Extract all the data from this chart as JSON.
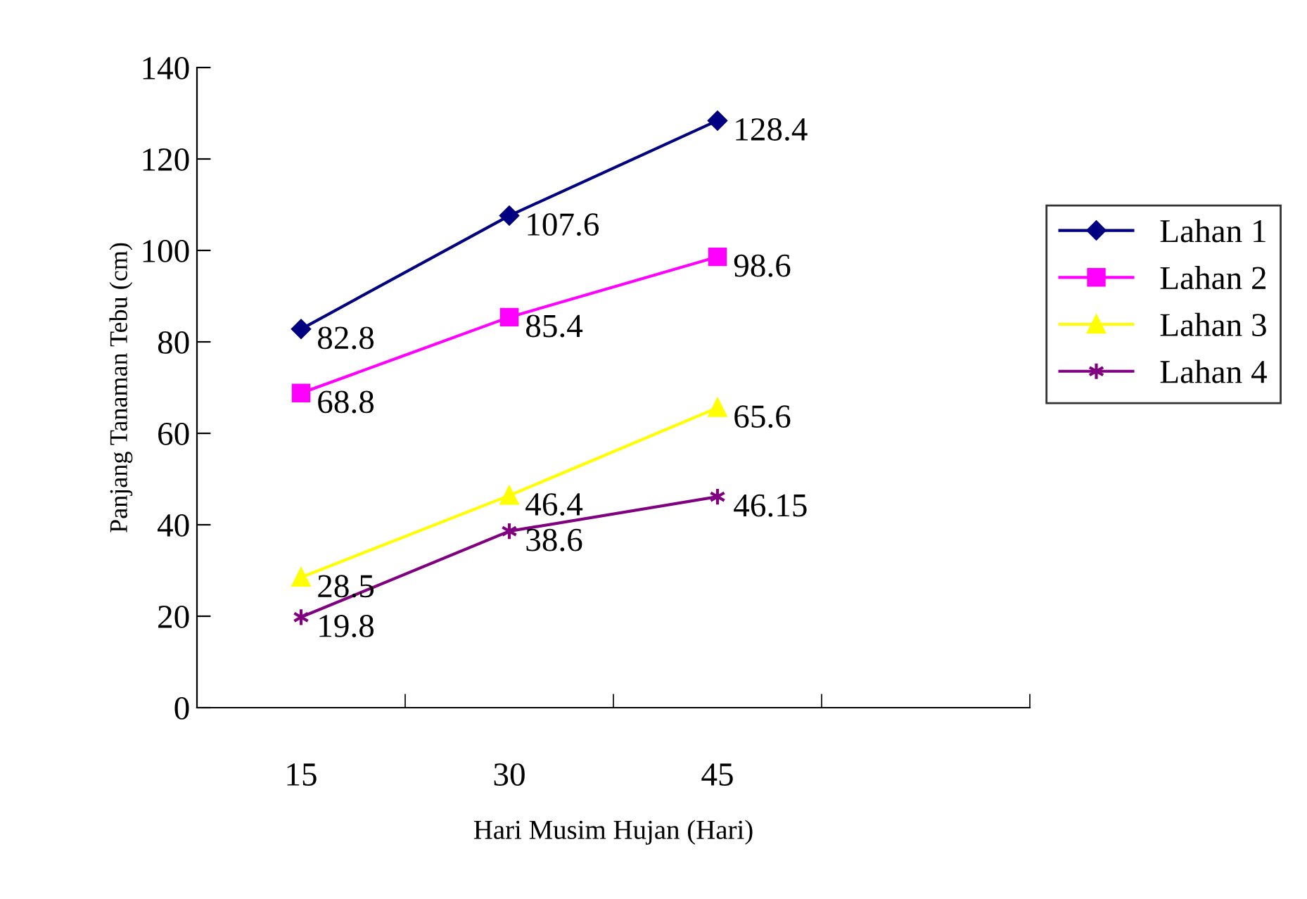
{
  "chart_data": {
    "type": "line",
    "xlabel": "Hari Musim Hujan (Hari)",
    "ylabel": "Panjang Tanaman Tebu (cm)",
    "categories": [
      "15",
      "30",
      "45",
      null
    ],
    "series": [
      {
        "name": "Lahan 1",
        "color": "#000080",
        "marker": "diamond",
        "values": [
          82.8,
          107.6,
          128.4,
          null
        ]
      },
      {
        "name": "Lahan 2",
        "color": "#ff00ff",
        "marker": "square",
        "values": [
          68.8,
          85.4,
          98.6,
          null
        ]
      },
      {
        "name": "Lahan 3",
        "color": "#ffff00",
        "marker": "triangle",
        "values": [
          28.5,
          46.4,
          65.6,
          null
        ]
      },
      {
        "name": "Lahan 4",
        "color": "#800080",
        "marker": "cross",
        "values": [
          19.8,
          38.6,
          46.15,
          null
        ]
      }
    ],
    "ylim": [
      0,
      140
    ],
    "yticks": [
      0,
      20,
      40,
      60,
      80,
      100,
      120,
      140
    ],
    "data_labels": true,
    "grid": false,
    "legend": "right",
    "line_style": "solid"
  }
}
